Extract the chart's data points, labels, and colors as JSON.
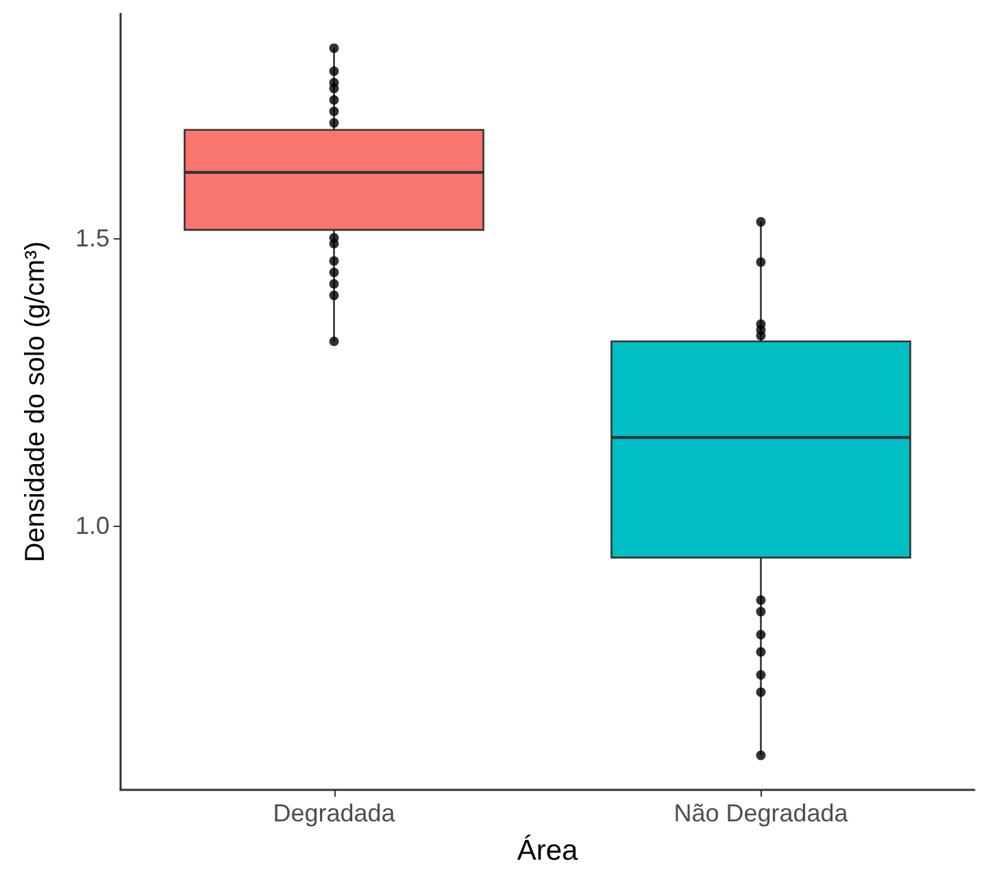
{
  "chart_data": {
    "type": "box",
    "xlabel": "Área",
    "ylabel": "Densidade do solo (g/cm³)",
    "categories": [
      "Degradada",
      "Não Degradada"
    ],
    "series": [
      {
        "colors": [
          "#f8766d",
          "#00bfc4"
        ],
        "boxes": [
          {
            "low": 1.32,
            "q1": 1.514,
            "median": 1.614,
            "q3": 1.688,
            "high": 1.83
          },
          {
            "low": 0.6,
            "q1": 0.944,
            "median": 1.153,
            "q3": 1.32,
            "high": 1.528
          }
        ]
      },
      {
        "type": "scatter",
        "color": "#000000",
        "marker": "circle",
        "x": [
          "Degradada",
          "Degradada",
          "Degradada",
          "Degradada",
          "Degradada",
          "Degradada",
          "Degradada",
          "Degradada",
          "Degradada",
          "Degradada",
          "Degradada",
          "Degradada",
          "Degradada",
          "Degradada",
          "Não Degradada",
          "Não Degradada",
          "Não Degradada",
          "Não Degradada",
          "Não Degradada",
          "Não Degradada",
          "Não Degradada",
          "Não Degradada",
          "Não Degradada",
          "Não Degradada",
          "Não Degradada",
          "Não Degradada"
        ],
        "values": [
          1.83,
          1.79,
          1.77,
          1.76,
          1.74,
          1.72,
          1.7,
          1.5,
          1.49,
          1.46,
          1.44,
          1.42,
          1.4,
          1.32,
          1.528,
          1.458,
          1.35,
          1.34,
          1.33,
          0.87,
          0.85,
          0.81,
          0.78,
          0.74,
          0.71,
          0.6
        ]
      }
    ],
    "ylim": [
      0.54,
      1.89
    ],
    "yticks": [
      {
        "value": 1,
        "label": "1.0"
      },
      {
        "value": 1.5,
        "label": "1.5"
      }
    ],
    "grid": false
  }
}
